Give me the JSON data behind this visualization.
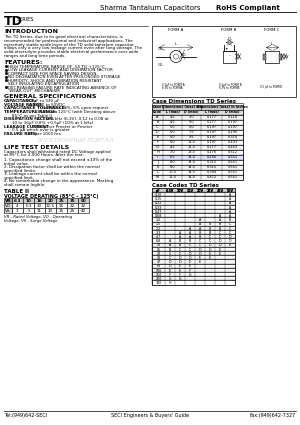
{
  "title_header": "Sharma Tantalum Capacitors",
  "rohs": "RoHS Compliant",
  "series_big": "TD",
  "series_small": "SERIES",
  "intro_title": "INTRODUCTION",
  "intro_text": [
    "The TD Series, due to its good electrical characteristics, is",
    "recommended for professional and industrial applications. The",
    "extremely stable oxide layer of the TD solid tantalum capacitor",
    "allows only a very low leakage current even after long storage. The",
    "solid electrolyte provides stable electrical performance over wide",
    "ranges and long time periods."
  ],
  "features_title": "FEATURES:",
  "features": [
    "HIGH TEMPERATURE RANGE OF -55 TO +125°C",
    "LOW LEAKAGE CURRENT AND DISSIPATION FACTOR",
    "COMPACT SIZE FOR SPACE SAVING DESIGN",
    "NO DEGRADATION EVEN AFTER PROLONGED STORAGE",
    "HUMIDITY, SHOCK AND VIBRATION RESISTANT",
    "SELF INSULATING ENCAPSULATION",
    "DECREASING FAILURE RATE INDICATING ABSENCE OF",
    "‘WEAR-OUT’ MECHANISM"
  ],
  "gen_spec_title": "GENERAL SPECIFICATIONS",
  "gen_specs": [
    [
      "CAPACITANCE:",
      "0.1 μF to 330 μF"
    ],
    [
      "VOLTAGE RANGE:",
      "6.3VDC to 50VDC"
    ],
    [
      "CAPACITANCE TOLERANCE:",
      "±20%, ±10%, 5% upon request"
    ],
    [
      "TEMPERATURE RANGE:",
      "-55°C to a 125°C (with Derating above"
    ],
    [
      "",
      "85°C as per Table I)"
    ],
    [
      "DISSIPATION FACTOR:",
      "0.1 at 1 kHz (6.3V), 0.12 to 0.08 at"
    ],
    [
      "",
      "10 to 16μF 0.8% +0.5μF (10% at 1 kHz)"
    ],
    [
      "LEAKAGE CURRENT:",
      "0.01CμF or Pmeter or Pmeter"
    ],
    [
      "",
      "0.5 μA which ever is greater"
    ],
    [
      "FAILURE RATE:",
      "1% per 1000 hrs"
    ]
  ],
  "watermark": "ЭЛЕКТРОННЫЙ ПОРТАЛ",
  "life_test_title": "LIFE TEST DETAILS",
  "life_test_intro": [
    "Capacitors shall withstand rated DC Voltage applied",
    "at 85°C for 2,000 Hours. After the test:"
  ],
  "life_test_items": [
    "1. Capacitance change shall not exceed ±10% of the",
    "initial value.",
    "2. Dissipation factor shall be within the normal",
    "specified limits.",
    "3. Leakage current shall be within the normal",
    "specified limit.",
    "4. No remarkable change in the appearance. Marking",
    "shall remain legible."
  ],
  "table_title": "TABLE II",
  "table_subtitle": "VOLTAGE DERATING (85°C - 125°C)",
  "table_col_headers": [
    "VR",
    "6.3",
    "10",
    "16",
    "20",
    "25",
    "35",
    "50"
  ],
  "table_rows": [
    [
      "VO",
      "4",
      "6.3",
      "10",
      "12.5",
      "15",
      "22",
      "32"
    ],
    [
      "VS",
      "3",
      "5",
      "11",
      "10",
      "15",
      "25",
      "40"
    ]
  ],
  "table_note": [
    "VR - Rated Voltage, VO - Operating",
    "Voltage, VS - Surge Voltage"
  ],
  "diag_title_a": "FORM A",
  "diag_title_b": "FORM B",
  "diag_title_c": "FORM C",
  "diag_sub_a1": "0.1μF to FORM A",
  "diag_sub_a2": "6.3V to FORMA",
  "diag_sub_b1": "0.1μF to FORM B",
  "diag_sub_b2": "6.3V to FORMB",
  "diag_sub_c1": "0.5 μF to FORMC",
  "case_dim_title": "Case Dimensions TD Series",
  "case_dim_headers1": [
    "Case",
    "Dimensions (max) mm",
    "",
    "Dimensions (max) in Inches",
    ""
  ],
  "case_dim_headers2": [
    "Code",
    "L (max)",
    "D (max)",
    "L (max)",
    "D (max)"
  ],
  "case_dim_rows": [
    [
      "A",
      "4.5",
      "3.0",
      "0.177",
      "0.118"
    ],
    [
      "B",
      "4.5",
      "5.0",
      "0.177",
      "0.197"
    ],
    [
      "C",
      "5.0",
      "5.0",
      "0.197",
      "0.197"
    ],
    [
      "D",
      "5.0",
      "7.5",
      "0.197",
      "0.295"
    ],
    [
      "E",
      "5.0",
      "9.5",
      "0.197",
      "0.374"
    ],
    [
      "F",
      "5.0",
      "11.0",
      "0.197",
      "0.433"
    ],
    [
      "G",
      "4.5",
      "11.5",
      "0.177",
      "0.453"
    ],
    [
      "H",
      "7.0",
      "13.0",
      "0.276",
      "0.512"
    ],
    [
      "I",
      "6.5",
      "14.0",
      "0.256",
      "0.551"
    ],
    [
      "J",
      "8.0",
      "14.0",
      "0.315",
      "0.551"
    ],
    [
      "K",
      "8.0",
      "14.0",
      "0.315",
      "0.551"
    ],
    [
      "L",
      "10.0",
      "14.0",
      "0.394",
      "0.551"
    ],
    [
      "M",
      "12.0",
      "14.0",
      "0.472",
      "0.551"
    ]
  ],
  "case_codes_title": "Case Codes TD Series",
  "case_codes_headers": [
    "μF",
    "6.3V",
    "10V",
    "16V",
    "20V",
    "25V",
    "35V",
    "50V"
  ],
  "case_codes_rows": [
    [
      "0.10",
      "",
      "",
      "",
      "",
      "",
      "",
      "A"
    ],
    [
      "0.15",
      "",
      "",
      "",
      "",
      "",
      "",
      "A"
    ],
    [
      "0.22",
      "",
      "",
      "",
      "",
      "",
      "",
      "A"
    ],
    [
      "0.33",
      "",
      "",
      "",
      "",
      "",
      "",
      "A"
    ],
    [
      "0.47",
      "",
      "",
      "",
      "",
      "",
      "",
      "A"
    ],
    [
      "0.68",
      "",
      "",
      "",
      "",
      "",
      "A",
      "A"
    ],
    [
      "1.0",
      "",
      "",
      "",
      "A",
      "",
      "A",
      "B"
    ],
    [
      "1.5",
      "",
      "",
      "",
      "A",
      "B",
      "B",
      "C"
    ],
    [
      "2.2",
      "",
      "",
      "A",
      "A",
      "B",
      "B",
      "C"
    ],
    [
      "3.3",
      "",
      "A",
      "A",
      "B",
      "B",
      "C",
      "C"
    ],
    [
      "4.7",
      "",
      "A",
      "A",
      "B",
      "C",
      "C",
      "D"
    ],
    [
      "6.8",
      "A",
      "B",
      "B",
      "C",
      "C",
      "D",
      "D"
    ],
    [
      "10",
      "A",
      "B",
      "C",
      "C",
      "D",
      "D",
      "E"
    ],
    [
      "15",
      "B",
      "C",
      "C",
      "D",
      "D",
      "E",
      ""
    ],
    [
      "22",
      "C",
      "C",
      "D",
      "D",
      "E",
      "E",
      ""
    ],
    [
      "33",
      "C",
      "D",
      "D",
      "E",
      "E",
      "",
      ""
    ],
    [
      "47",
      "D",
      "D",
      "E",
      "E",
      "",
      "",
      ""
    ],
    [
      "68",
      "D",
      "E",
      "E",
      "",
      "",
      "",
      ""
    ],
    [
      "100",
      "E",
      "E",
      "F",
      "",
      "",
      "",
      ""
    ],
    [
      "150",
      "F",
      "F",
      "G",
      "",
      "",
      "",
      ""
    ],
    [
      "220",
      "G",
      "G",
      "",
      "",
      "",
      "",
      ""
    ],
    [
      "330",
      "H",
      "",
      "",
      "",
      "",
      "",
      ""
    ]
  ],
  "footer_left": "Tel:(949)642-SECI",
  "footer_center": "SECI Engineers & Buyers' Guide",
  "footer_right": "Fax:(949)642-7327",
  "bg_color": "#ffffff"
}
